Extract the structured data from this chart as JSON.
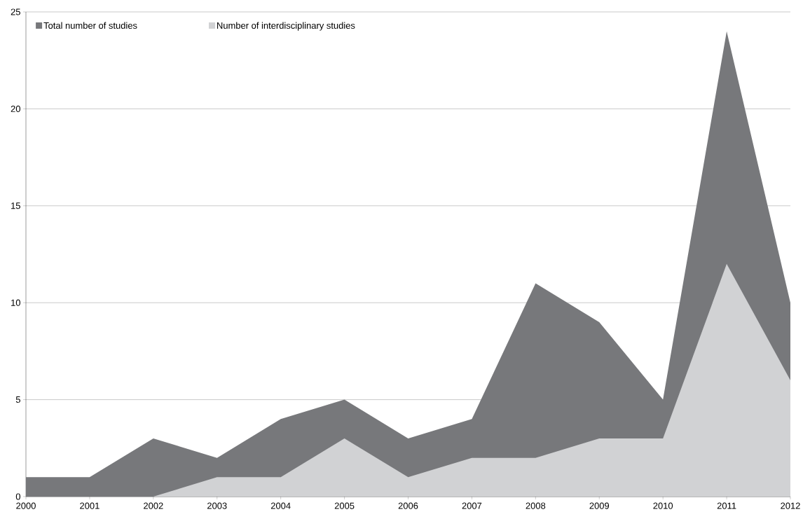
{
  "chart_data": {
    "type": "area",
    "x": [
      2000,
      2001,
      2002,
      2003,
      2004,
      2005,
      2006,
      2007,
      2008,
      2009,
      2010,
      2011,
      2012
    ],
    "series": [
      {
        "name": "Total number of studies",
        "color": "#77787b",
        "values": [
          1,
          1,
          3,
          2,
          4,
          5,
          3,
          4,
          11,
          9,
          5,
          24,
          10
        ]
      },
      {
        "name": "Number of interdisciplinary studies",
        "color": "#d1d2d4",
        "values": [
          0,
          0,
          0,
          1,
          1,
          3,
          1,
          2,
          2,
          3,
          3,
          12,
          6
        ]
      }
    ],
    "xlim": [
      2000,
      2012
    ],
    "xticks": [
      2000,
      2001,
      2002,
      2003,
      2004,
      2005,
      2006,
      2007,
      2008,
      2009,
      2010,
      2011,
      2012
    ],
    "ylim": [
      0,
      25
    ],
    "yticks": [
      0,
      5,
      10,
      15,
      20,
      25
    ],
    "grid": "y",
    "legend": "top left"
  }
}
